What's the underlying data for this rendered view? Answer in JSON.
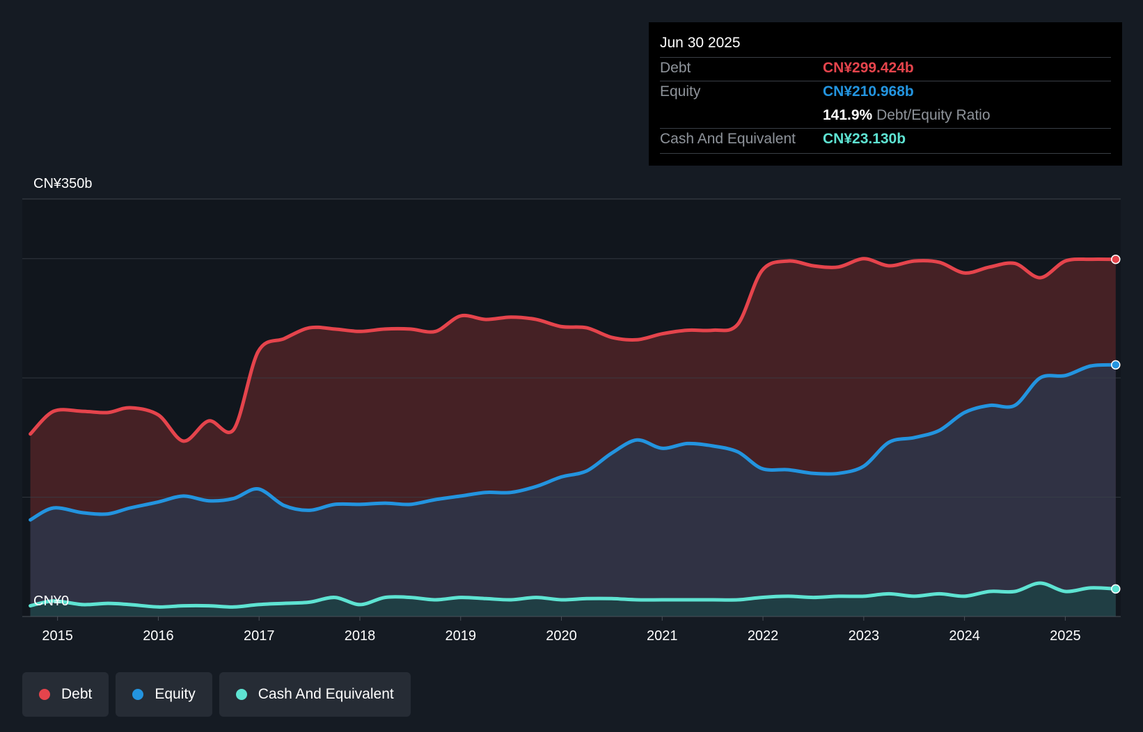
{
  "chart_data": {
    "type": "area",
    "title": "",
    "ylabel": "",
    "xlabel": "",
    "y_top_label": "CN¥350b",
    "y_bottom_label": "CN¥0",
    "ylim": [
      0,
      350
    ],
    "xlim": [
      2014.65,
      2025.55
    ],
    "x_ticks": [
      2015,
      2016,
      2017,
      2018,
      2019,
      2020,
      2021,
      2022,
      2023,
      2024,
      2025
    ],
    "x_tick_labels": [
      "2015",
      "2016",
      "2017",
      "2018",
      "2019",
      "2020",
      "2021",
      "2022",
      "2023",
      "2024",
      "2025"
    ],
    "y_gridlines": [
      0,
      100,
      200,
      300,
      350
    ],
    "series": [
      {
        "name": "Debt",
        "color": "#e5444c",
        "fill": "#4a2326",
        "points": [
          [
            2014.73,
            153
          ],
          [
            2014.96,
            172
          ],
          [
            2015.25,
            172
          ],
          [
            2015.5,
            171
          ],
          [
            2015.72,
            175
          ],
          [
            2016.0,
            169
          ],
          [
            2016.25,
            147
          ],
          [
            2016.5,
            164
          ],
          [
            2016.75,
            157
          ],
          [
            2016.99,
            222
          ],
          [
            2017.25,
            233
          ],
          [
            2017.5,
            242
          ],
          [
            2017.75,
            241
          ],
          [
            2018.0,
            239
          ],
          [
            2018.25,
            241
          ],
          [
            2018.5,
            241
          ],
          [
            2018.75,
            239
          ],
          [
            2019.0,
            252
          ],
          [
            2019.25,
            249
          ],
          [
            2019.5,
            251
          ],
          [
            2019.75,
            249
          ],
          [
            2020.0,
            243
          ],
          [
            2020.25,
            242
          ],
          [
            2020.5,
            234
          ],
          [
            2020.75,
            232
          ],
          [
            2021.0,
            237
          ],
          [
            2021.25,
            240
          ],
          [
            2021.5,
            240
          ],
          [
            2021.75,
            245
          ],
          [
            2021.99,
            290
          ],
          [
            2022.25,
            298
          ],
          [
            2022.5,
            294
          ],
          [
            2022.75,
            293
          ],
          [
            2023.0,
            300
          ],
          [
            2023.25,
            294
          ],
          [
            2023.5,
            298
          ],
          [
            2023.75,
            297
          ],
          [
            2024.0,
            288
          ],
          [
            2024.25,
            293
          ],
          [
            2024.5,
            296
          ],
          [
            2024.75,
            284
          ],
          [
            2025.0,
            298
          ],
          [
            2025.25,
            299.5
          ],
          [
            2025.5,
            299.424
          ]
        ]
      },
      {
        "name": "Equity",
        "color": "#2394df",
        "fill": "#2f3447",
        "points": [
          [
            2014.73,
            81
          ],
          [
            2014.96,
            91
          ],
          [
            2015.25,
            87
          ],
          [
            2015.5,
            86
          ],
          [
            2015.72,
            91
          ],
          [
            2016.0,
            96
          ],
          [
            2016.25,
            101
          ],
          [
            2016.5,
            97
          ],
          [
            2016.75,
            99
          ],
          [
            2016.99,
            107
          ],
          [
            2017.25,
            93
          ],
          [
            2017.5,
            89
          ],
          [
            2017.75,
            94
          ],
          [
            2018.0,
            94
          ],
          [
            2018.25,
            95
          ],
          [
            2018.5,
            94
          ],
          [
            2018.75,
            98
          ],
          [
            2019.0,
            101
          ],
          [
            2019.25,
            104
          ],
          [
            2019.5,
            104
          ],
          [
            2019.75,
            109
          ],
          [
            2020.0,
            117
          ],
          [
            2020.25,
            122
          ],
          [
            2020.5,
            137
          ],
          [
            2020.75,
            148
          ],
          [
            2021.0,
            141
          ],
          [
            2021.25,
            145
          ],
          [
            2021.5,
            143
          ],
          [
            2021.75,
            138
          ],
          [
            2021.99,
            124
          ],
          [
            2022.25,
            123
          ],
          [
            2022.5,
            120
          ],
          [
            2022.75,
            120
          ],
          [
            2023.0,
            126
          ],
          [
            2023.25,
            146
          ],
          [
            2023.5,
            150
          ],
          [
            2023.75,
            156
          ],
          [
            2024.0,
            171
          ],
          [
            2024.25,
            177
          ],
          [
            2024.5,
            177
          ],
          [
            2024.75,
            200
          ],
          [
            2025.0,
            202
          ],
          [
            2025.25,
            210
          ],
          [
            2025.5,
            210.968
          ]
        ]
      },
      {
        "name": "Cash And Equivalent",
        "color": "#5ee3d2",
        "fill": "#1f3f44",
        "points": [
          [
            2014.73,
            9
          ],
          [
            2014.96,
            13
          ],
          [
            2015.25,
            10
          ],
          [
            2015.5,
            11
          ],
          [
            2015.72,
            10
          ],
          [
            2016.0,
            8
          ],
          [
            2016.25,
            9
          ],
          [
            2016.5,
            9
          ],
          [
            2016.75,
            8
          ],
          [
            2016.99,
            10
          ],
          [
            2017.25,
            11
          ],
          [
            2017.5,
            12
          ],
          [
            2017.75,
            16
          ],
          [
            2018.0,
            10
          ],
          [
            2018.25,
            16
          ],
          [
            2018.5,
            16
          ],
          [
            2018.75,
            14
          ],
          [
            2019.0,
            16
          ],
          [
            2019.25,
            15
          ],
          [
            2019.5,
            14
          ],
          [
            2019.75,
            16
          ],
          [
            2020.0,
            14
          ],
          [
            2020.25,
            15
          ],
          [
            2020.5,
            15
          ],
          [
            2020.75,
            14
          ],
          [
            2021.0,
            14
          ],
          [
            2021.25,
            14
          ],
          [
            2021.5,
            14
          ],
          [
            2021.75,
            14
          ],
          [
            2021.99,
            16
          ],
          [
            2022.25,
            17
          ],
          [
            2022.5,
            16
          ],
          [
            2022.75,
            17
          ],
          [
            2023.0,
            17
          ],
          [
            2023.25,
            19
          ],
          [
            2023.5,
            17
          ],
          [
            2023.75,
            19
          ],
          [
            2024.0,
            17
          ],
          [
            2024.25,
            21
          ],
          [
            2024.5,
            21
          ],
          [
            2024.75,
            28
          ],
          [
            2025.0,
            21
          ],
          [
            2025.25,
            24
          ],
          [
            2025.5,
            23.13
          ]
        ]
      }
    ]
  },
  "tooltip": {
    "date": "Jun 30 2025",
    "debt_label": "Debt",
    "debt_value": "CN¥299.424b",
    "equity_label": "Equity",
    "equity_value": "CN¥210.968b",
    "ratio_value": "141.9%",
    "ratio_label": "Debt/Equity Ratio",
    "cash_label": "Cash And Equivalent",
    "cash_value": "CN¥23.130b"
  },
  "legend": {
    "debt": "Debt",
    "equity": "Equity",
    "cash": "Cash And Equivalent"
  },
  "colors": {
    "debt": "#e5444c",
    "equity": "#2394df",
    "cash": "#5ee3d2",
    "background": "#151b23"
  }
}
